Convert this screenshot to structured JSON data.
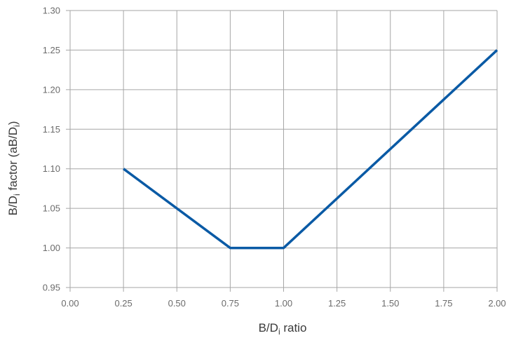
{
  "chart_data": {
    "type": "line",
    "title": "",
    "xlabel": {
      "main": "B/D",
      "sub": "i",
      "tail": " ratio"
    },
    "ylabel": {
      "main": "B/D",
      "sub": "i",
      "mid": " factor (aB/D",
      "sub2": "i",
      "tail": ")"
    },
    "xlim": [
      0,
      2
    ],
    "ylim": [
      0.95,
      1.3
    ],
    "x_ticks": [
      0,
      0.25,
      0.5,
      0.75,
      1.0,
      1.25,
      1.5,
      1.75,
      2.0
    ],
    "x_tick_labels": [
      "0.00",
      "0.25",
      "0.50",
      "0.75",
      "1.00",
      "1.25",
      "1.50",
      "1.75",
      "2.00"
    ],
    "y_ticks": [
      0.95,
      1.0,
      1.05,
      1.1,
      1.15,
      1.2,
      1.25,
      1.3
    ],
    "y_tick_labels": [
      "0.95",
      "1.00",
      "1.05",
      "1.10",
      "1.15",
      "1.20",
      "1.25",
      "1.30"
    ],
    "grid": true,
    "series": [
      {
        "x": [
          0.25,
          0.75,
          1.0,
          2.0
        ],
        "y": [
          1.1,
          1.0,
          1.0,
          1.25
        ],
        "color": "#0a5aa5"
      }
    ],
    "grid_color": "#a6a6a6"
  }
}
